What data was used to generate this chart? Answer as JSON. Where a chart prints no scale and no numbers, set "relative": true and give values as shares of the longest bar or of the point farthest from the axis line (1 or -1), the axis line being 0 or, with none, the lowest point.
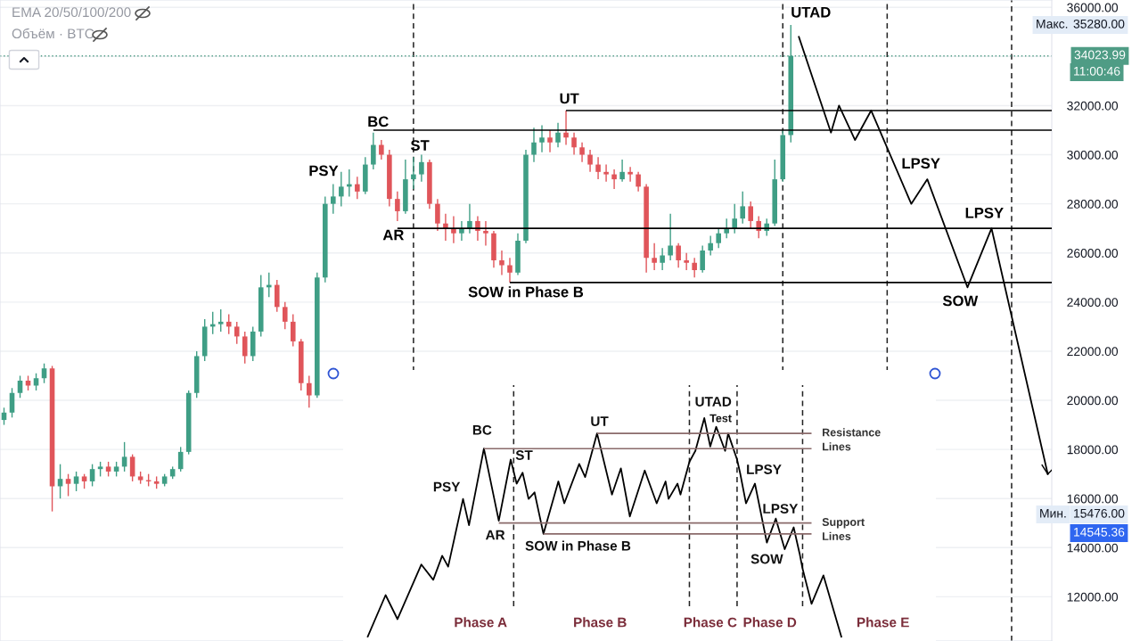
{
  "chart_data": [
    {
      "type": "candlestick",
      "categories": [
        null,
        null,
        null,
        null,
        null,
        null,
        null,
        null,
        null,
        null,
        null,
        null,
        null,
        null,
        null,
        null,
        null,
        null,
        null,
        null,
        null,
        null,
        null,
        null,
        null,
        null,
        null,
        null,
        null,
        null,
        null,
        null,
        null,
        null,
        null,
        null,
        null,
        null,
        null,
        null,
        null,
        null,
        null,
        null,
        null,
        null,
        null,
        null,
        null,
        null,
        null,
        null,
        null,
        null,
        null,
        null,
        null,
        null,
        null,
        null,
        null,
        null,
        null,
        null,
        null,
        null,
        null,
        null,
        null,
        null,
        null,
        null,
        null,
        null,
        null,
        null,
        null,
        null,
        null,
        null,
        null,
        null,
        null,
        null,
        null,
        null,
        null,
        null,
        null,
        null,
        null,
        null,
        null,
        null,
        null,
        null,
        null,
        null,
        null,
        null,
        null,
        null,
        null,
        null,
        null,
        null,
        null,
        null,
        null,
        null,
        null,
        null,
        null,
        null,
        null,
        null,
        null,
        null,
        null,
        null,
        null,
        null,
        null,
        null,
        null,
        null,
        null,
        null,
        null,
        null,
        null
      ],
      "ohlc": [
        [
          19200,
          19700,
          19000,
          19500
        ],
        [
          19500,
          20500,
          19300,
          20300
        ],
        [
          20300,
          21000,
          20100,
          20800
        ],
        [
          20800,
          21000,
          20400,
          20600
        ],
        [
          20600,
          21100,
          20400,
          20900
        ],
        [
          20900,
          21500,
          20700,
          21300
        ],
        [
          21300,
          21400,
          15476,
          16500
        ],
        [
          16500,
          17400,
          16000,
          16800
        ],
        [
          16800,
          17000,
          16100,
          16600
        ],
        [
          16600,
          17100,
          16300,
          16900
        ],
        [
          16900,
          17000,
          16400,
          16700
        ],
        [
          16700,
          17400,
          16500,
          17200
        ],
        [
          17200,
          17500,
          16900,
          17300
        ],
        [
          17300,
          17500,
          16900,
          17100
        ],
        [
          17100,
          17500,
          16900,
          17300
        ],
        [
          17300,
          18300,
          17100,
          17700
        ],
        [
          17700,
          17800,
          16700,
          16900
        ],
        [
          16900,
          17100,
          16600,
          16750
        ],
        [
          16750,
          17000,
          16500,
          16700
        ],
        [
          16700,
          16900,
          16400,
          16600
        ],
        [
          16600,
          17000,
          16500,
          16900
        ],
        [
          16900,
          17300,
          16800,
          17200
        ],
        [
          17200,
          18100,
          17100,
          17900
        ],
        [
          17900,
          20400,
          17800,
          20300
        ],
        [
          20300,
          22000,
          20100,
          21800
        ],
        [
          21800,
          23300,
          21600,
          23000
        ],
        [
          23000,
          23600,
          22700,
          23100
        ],
        [
          23100,
          23700,
          22800,
          23200
        ],
        [
          23200,
          23500,
          22700,
          23000
        ],
        [
          23000,
          23200,
          22300,
          22600
        ],
        [
          22600,
          22800,
          21500,
          21800
        ],
        [
          21800,
          23000,
          21600,
          22800
        ],
        [
          22800,
          25100,
          22600,
          24600
        ],
        [
          24600,
          25200,
          24200,
          24700
        ],
        [
          24700,
          24900,
          23600,
          23800
        ],
        [
          23800,
          24000,
          22900,
          23200
        ],
        [
          23200,
          23500,
          22200,
          22400
        ],
        [
          22400,
          22500,
          20400,
          20700
        ],
        [
          20700,
          21000,
          19700,
          20200
        ],
        [
          20200,
          25200,
          20100,
          25000
        ],
        [
          25000,
          28300,
          24800,
          28000
        ],
        [
          28000,
          28800,
          27600,
          28300
        ],
        [
          28300,
          29300,
          27900,
          28700
        ],
        [
          28700,
          29400,
          28300,
          28800
        ],
        [
          28800,
          29100,
          28200,
          28500
        ],
        [
          28500,
          29900,
          28400,
          29600
        ],
        [
          29600,
          30900,
          29400,
          30400
        ],
        [
          30400,
          30600,
          29800,
          30000
        ],
        [
          30000,
          30200,
          27900,
          28200
        ],
        [
          28200,
          28500,
          27300,
          27700
        ],
        [
          27700,
          29800,
          27600,
          29000
        ],
        [
          29000,
          29900,
          28600,
          29200
        ],
        [
          29200,
          30000,
          28900,
          29700
        ],
        [
          29700,
          29800,
          27800,
          28000
        ],
        [
          28000,
          28200,
          26900,
          27200
        ],
        [
          27200,
          27600,
          26500,
          27000
        ],
        [
          27000,
          27500,
          26400,
          26800
        ],
        [
          26800,
          27300,
          26500,
          27000
        ],
        [
          27000,
          28000,
          26800,
          27300
        ],
        [
          27300,
          27500,
          26500,
          26900
        ],
        [
          26900,
          27300,
          26300,
          26800
        ],
        [
          26800,
          26900,
          25400,
          25700
        ],
        [
          25700,
          26100,
          25100,
          25500
        ],
        [
          25500,
          25800,
          24800,
          25200
        ],
        [
          25200,
          26800,
          25100,
          26500
        ],
        [
          26500,
          30200,
          26400,
          30000
        ],
        [
          30000,
          31100,
          29700,
          30500
        ],
        [
          30500,
          31200,
          30100,
          30700
        ],
        [
          30700,
          31000,
          30100,
          30500
        ],
        [
          30500,
          31300,
          30300,
          30900
        ],
        [
          30900,
          31800,
          30400,
          30700
        ],
        [
          30700,
          30900,
          30000,
          30300
        ],
        [
          30300,
          30500,
          29700,
          30000
        ],
        [
          30000,
          30200,
          29300,
          29600
        ],
        [
          29600,
          29900,
          29000,
          29300
        ],
        [
          29300,
          29600,
          28900,
          29200
        ],
        [
          29200,
          29400,
          28600,
          29000
        ],
        [
          29000,
          29800,
          28900,
          29300
        ],
        [
          29300,
          29500,
          28900,
          29200
        ],
        [
          29200,
          29300,
          28500,
          28700
        ],
        [
          28700,
          28800,
          25200,
          25800
        ],
        [
          25800,
          26400,
          25300,
          25600
        ],
        [
          25600,
          26200,
          25300,
          25900
        ],
        [
          25900,
          27600,
          25700,
          26300
        ],
        [
          26300,
          26400,
          25400,
          25700
        ],
        [
          25700,
          26000,
          25300,
          25600
        ],
        [
          25600,
          25800,
          25000,
          25300
        ],
        [
          25300,
          26300,
          25200,
          26100
        ],
        [
          26100,
          26700,
          25900,
          26400
        ],
        [
          26400,
          27000,
          26200,
          26800
        ],
        [
          26800,
          27400,
          26600,
          27000
        ],
        [
          27000,
          28000,
          26800,
          27400
        ],
        [
          27400,
          28500,
          27200,
          27900
        ],
        [
          27900,
          28100,
          27000,
          27300
        ],
        [
          27300,
          27500,
          26600,
          26900
        ],
        [
          26900,
          27400,
          26700,
          27200
        ],
        [
          27200,
          29800,
          27100,
          29000
        ],
        [
          29000,
          31000,
          28900,
          30800
        ],
        [
          30800,
          35280,
          30500,
          34023.99
        ],
        null,
        null,
        null,
        null,
        null,
        null,
        null,
        null,
        null,
        null,
        null,
        null,
        null,
        null,
        null,
        null,
        null,
        null,
        null,
        null,
        null,
        null,
        null,
        null,
        null,
        null,
        null,
        null,
        null,
        null,
        null,
        null
      ],
      "series": [
        {
          "type": "line",
          "color": "#000000",
          "values": [
            null,
            null,
            null,
            null,
            null,
            null,
            null,
            null,
            null,
            null,
            null,
            null,
            null,
            null,
            null,
            null,
            null,
            null,
            null,
            null,
            null,
            null,
            null,
            null,
            null,
            null,
            null,
            null,
            null,
            null,
            null,
            null,
            null,
            null,
            null,
            null,
            null,
            null,
            null,
            null,
            null,
            null,
            null,
            null,
            null,
            null,
            null,
            null,
            null,
            null,
            null,
            null,
            null,
            null,
            null,
            null,
            null,
            null,
            null,
            null,
            null,
            null,
            null,
            null,
            null,
            null,
            null,
            null,
            null,
            null,
            null,
            null,
            null,
            null,
            null,
            null,
            null,
            null,
            null,
            null,
            null,
            null,
            null,
            null,
            null,
            null,
            null,
            null,
            null,
            null,
            null,
            null,
            null,
            null,
            null,
            null,
            null,
            null,
            null,
            34800,
            null,
            null,
            null,
            30900,
            32000,
            null,
            30600,
            null,
            31800,
            null,
            null,
            null,
            null,
            28000,
            null,
            29000,
            null,
            null,
            null,
            null,
            24600,
            null,
            null,
            27000,
            null,
            null,
            null,
            null,
            null,
            null,
            17000
          ]
        }
      ],
      "ylim": [
        10200,
        36300
      ],
      "yticks": [
        {
          "value": 12000,
          "label": "12000.00"
        },
        {
          "value": 14000,
          "label": "14000.00"
        },
        {
          "value": 16000,
          "label": "16000.00"
        },
        {
          "value": 18000,
          "label": "18000.00"
        },
        {
          "value": 20000,
          "label": "20000.00"
        },
        {
          "value": 22000,
          "label": "22000.00"
        },
        {
          "value": 24000,
          "label": "24000.00"
        },
        {
          "value": 26000,
          "label": "26000.00"
        },
        {
          "value": 28000,
          "label": "28000.00"
        },
        {
          "value": 30000,
          "label": "30000.00"
        },
        {
          "value": 32000,
          "label": "32000.00"
        },
        {
          "value": 34000,
          "label": null
        },
        {
          "value": 36000,
          "label": "36000.00"
        }
      ],
      "grid": "y",
      "ref_lines": [
        {
          "axis": "y",
          "value": 31800,
          "color": "#000000"
        },
        {
          "axis": "y",
          "value": 31000,
          "color": "#000000"
        },
        {
          "axis": "y",
          "value": 27000,
          "color": "#000000"
        },
        {
          "axis": "y",
          "value": 24800,
          "color": "#000000"
        },
        {
          "axis": "y",
          "value": 34023.99,
          "label": "34023.99",
          "line_style": "dotted",
          "color": "#4f9c85"
        }
      ],
      "annotations": [
        "EMA 20/50/100/200",
        "Объём · BTC",
        "PSY",
        "BC",
        "ST",
        "AR",
        "SOW in Phase B",
        "UT",
        "UTAD",
        "LPSY",
        "LPSY",
        "SOW",
        "Макс.",
        "35280.00",
        "11:00:46",
        "Мин.",
        "15476.00",
        "14545.36"
      ]
    },
    {
      "type": "line",
      "relative": true,
      "categories": [
        null,
        null,
        null,
        null,
        null,
        null,
        null,
        null,
        null,
        null,
        null,
        null,
        null,
        null,
        null,
        null,
        null,
        null,
        null,
        null,
        null,
        null,
        null,
        null,
        null,
        null,
        null,
        null,
        null,
        null,
        null,
        null,
        null,
        null,
        null,
        null,
        null,
        null,
        null,
        null,
        null,
        null,
        null,
        null,
        null,
        null,
        null,
        null,
        null,
        null,
        null,
        null,
        null,
        null,
        null,
        null,
        null,
        null,
        null,
        null,
        null,
        null,
        null,
        null,
        null,
        null,
        null,
        null,
        null,
        null,
        null,
        null,
        null,
        null,
        null,
        null,
        null,
        null,
        null,
        null,
        null,
        null,
        null,
        null,
        null,
        null,
        null,
        null,
        null,
        null,
        null,
        null,
        null,
        null,
        null,
        null,
        null,
        null,
        null,
        null,
        null,
        null,
        null,
        null,
        null,
        null,
        null,
        null,
        null,
        null,
        null,
        null,
        null,
        null,
        null,
        null,
        null,
        null,
        null,
        null,
        null,
        null,
        null,
        null,
        null,
        null,
        null,
        null,
        null,
        null,
        null,
        null,
        null,
        null,
        null,
        null,
        null,
        null,
        null,
        null,
        null,
        null,
        null,
        null,
        null,
        null,
        null,
        null,
        null,
        null,
        null,
        null,
        null,
        null,
        null,
        null,
        null,
        null,
        null,
        null
      ],
      "series": [
        {
          "color": "#000000",
          "values": [
            0,
            null,
            null,
            null,
            null,
            null,
            0.19,
            null,
            null,
            null,
            0.08,
            null,
            null,
            null,
            null,
            null,
            null,
            null,
            0.33,
            null,
            null,
            null,
            0.26,
            null,
            null,
            0.37,
            null,
            0.32,
            null,
            null,
            null,
            null,
            0.63,
            null,
            0.51,
            null,
            null,
            null,
            null,
            0.86,
            null,
            null,
            null,
            null,
            0.53,
            null,
            null,
            null,
            0.81,
            null,
            0.7,
            null,
            0.75,
            null,
            0.63,
            null,
            0.66,
            null,
            null,
            0.47,
            null,
            null,
            null,
            null,
            0.71,
            null,
            0.61,
            null,
            null,
            null,
            null,
            0.79,
            null,
            0.73,
            null,
            null,
            null,
            0.93,
            null,
            null,
            null,
            null,
            0.65,
            null,
            null,
            0.77,
            null,
            null,
            0.55,
            null,
            null,
            null,
            null,
            0.76,
            null,
            null,
            null,
            0.61,
            null,
            null,
            0.71,
            0.63,
            null,
            null,
            0.7,
            0.65,
            null,
            null,
            0.8,
            null,
            0.85,
            null,
            null,
            1,
            null,
            0.87,
            null,
            0.96,
            null,
            null,
            0.85,
            0.93,
            null,
            null,
            0.81,
            0.75,
            null,
            0.61,
            null,
            null,
            0.7,
            null,
            null,
            null,
            0.43,
            null,
            null,
            0.54,
            null,
            null,
            0.4,
            null,
            null,
            0.5,
            null,
            0.38,
            0.31,
            null,
            null,
            0.15,
            null,
            null,
            null,
            0.28,
            null,
            null,
            null,
            null,
            null,
            0
          ]
        }
      ],
      "ref_lines": [
        {
          "axis": "y",
          "value": 0.93,
          "color": "#8a6a6a"
        },
        {
          "axis": "y",
          "value": 0.86,
          "color": "#8a6a6a"
        },
        {
          "axis": "y",
          "value": 0.52,
          "color": "#8a6a6a"
        },
        {
          "axis": "y",
          "value": 0.47,
          "color": "#8a6a6a"
        }
      ],
      "annotations": [
        "PSY",
        "BC",
        "ST",
        "AR",
        "SOW in Phase B",
        "UT",
        "UTAD",
        "Test",
        "Resistance",
        "Lines",
        "Support",
        "Lines",
        "LPSY",
        "LPSY",
        "SOW",
        "Phase A",
        "Phase B",
        "Phase C",
        "Phase D",
        "Phase E"
      ]
    }
  ]
}
